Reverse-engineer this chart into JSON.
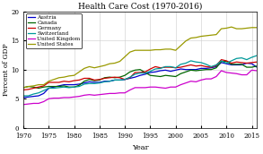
{
  "title": "Health Care Cost (1970-2016)",
  "xlabel": "Year",
  "ylabel": "Percent of GDP",
  "countries": [
    "Austria",
    "Canada",
    "Germany",
    "Switzerland",
    "United Kingdom",
    "United States"
  ],
  "colors": [
    "#0000cc",
    "#006600",
    "#cc0000",
    "#009999",
    "#cc00cc",
    "#999900"
  ],
  "years": [
    1970,
    1971,
    1972,
    1973,
    1974,
    1975,
    1976,
    1977,
    1978,
    1979,
    1980,
    1981,
    1982,
    1983,
    1984,
    1985,
    1986,
    1987,
    1988,
    1989,
    1990,
    1991,
    1992,
    1993,
    1994,
    1995,
    1996,
    1997,
    1998,
    1999,
    2000,
    2001,
    2002,
    2003,
    2004,
    2005,
    2006,
    2007,
    2008,
    2009,
    2010,
    2011,
    2012,
    2013,
    2014,
    2015,
    2016
  ],
  "Austria": [
    5.2,
    5.3,
    5.4,
    5.5,
    5.9,
    6.8,
    7.0,
    7.2,
    7.4,
    7.4,
    7.4,
    7.5,
    7.7,
    7.9,
    7.8,
    7.8,
    8.0,
    8.0,
    8.2,
    8.2,
    8.3,
    8.5,
    8.7,
    9.0,
    9.2,
    9.5,
    9.6,
    9.8,
    9.9,
    9.7,
    9.9,
    10.1,
    10.0,
    10.0,
    10.0,
    10.2,
    10.2,
    10.3,
    10.5,
    11.2,
    11.0,
    10.8,
    10.8,
    10.8,
    11.1,
    11.0,
    10.4
  ],
  "Canada": [
    6.9,
    7.1,
    7.0,
    6.8,
    7.0,
    7.1,
    7.1,
    7.1,
    7.2,
    7.0,
    7.0,
    7.3,
    8.0,
    8.3,
    8.1,
    8.2,
    8.6,
    8.7,
    8.6,
    8.7,
    9.0,
    9.6,
    9.9,
    10.0,
    9.5,
    9.0,
    8.9,
    8.8,
    9.0,
    8.9,
    8.8,
    9.3,
    9.6,
    9.9,
    9.8,
    9.9,
    10.0,
    10.0,
    10.3,
    11.4,
    11.4,
    10.9,
    10.9,
    10.9,
    10.4,
    10.4,
    10.6
  ],
  "Germany": [
    6.5,
    6.6,
    6.8,
    7.0,
    7.2,
    7.8,
    7.8,
    7.8,
    8.0,
    7.9,
    8.1,
    8.2,
    8.5,
    8.5,
    8.2,
    8.3,
    8.5,
    8.6,
    8.7,
    8.6,
    8.3,
    8.6,
    9.5,
    9.5,
    9.6,
    10.1,
    10.5,
    10.3,
    10.4,
    10.4,
    10.3,
    10.4,
    10.6,
    10.8,
    10.6,
    10.7,
    10.5,
    10.4,
    10.7,
    11.7,
    11.5,
    11.1,
    11.3,
    11.2,
    11.1,
    11.2,
    11.3
  ],
  "Switzerland": [
    5.5,
    5.5,
    5.8,
    6.0,
    6.4,
    6.8,
    6.8,
    6.9,
    7.0,
    6.9,
    7.0,
    7.1,
    7.5,
    7.6,
    7.6,
    7.7,
    7.9,
    8.0,
    8.2,
    8.2,
    8.3,
    8.7,
    9.2,
    9.4,
    9.4,
    9.7,
    10.1,
    10.2,
    10.5,
    10.5,
    10.3,
    10.9,
    11.1,
    11.5,
    11.3,
    11.2,
    10.9,
    10.5,
    10.8,
    11.5,
    11.1,
    11.5,
    11.9,
    12.0,
    11.7,
    12.1,
    12.4
  ],
  "United Kingdom": [
    4.0,
    4.1,
    4.2,
    4.2,
    4.5,
    5.0,
    5.1,
    5.1,
    5.2,
    5.2,
    5.3,
    5.4,
    5.6,
    5.7,
    5.6,
    5.7,
    5.8,
    5.9,
    5.9,
    6.0,
    6.0,
    6.5,
    6.9,
    6.9,
    6.9,
    7.0,
    7.0,
    6.9,
    6.8,
    7.0,
    7.0,
    7.4,
    7.7,
    8.0,
    7.9,
    8.2,
    8.4,
    8.4,
    8.8,
    9.8,
    9.5,
    9.4,
    9.3,
    9.1,
    9.1,
    9.9,
    9.8
  ],
  "United States": [
    6.9,
    7.1,
    7.2,
    7.4,
    7.4,
    8.0,
    8.3,
    8.6,
    8.7,
    8.9,
    9.0,
    9.6,
    10.2,
    10.5,
    10.3,
    10.5,
    10.7,
    11.0,
    11.1,
    11.4,
    12.2,
    13.0,
    13.3,
    13.3,
    13.3,
    13.3,
    13.4,
    13.4,
    13.5,
    13.5,
    13.3,
    14.1,
    14.9,
    15.4,
    15.5,
    15.7,
    15.8,
    15.9,
    16.0,
    17.0,
    17.1,
    17.3,
    17.0,
    17.0,
    17.1,
    17.2,
    17.2
  ],
  "xlim": [
    1970,
    2016
  ],
  "ylim": [
    0,
    20
  ],
  "yticks": [
    0,
    5,
    10,
    15,
    20
  ],
  "xticks": [
    1970,
    1975,
    1980,
    1985,
    1990,
    1995,
    2000,
    2005,
    2010,
    2015
  ],
  "background_color": "#ffffff",
  "linewidth": 0.9
}
